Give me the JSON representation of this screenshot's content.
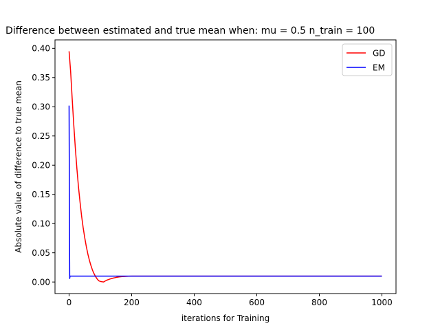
{
  "chart_data": {
    "type": "line",
    "title": "Difference between estimated and true mean when: mu = 0.5 n_train = 100",
    "xlabel": "iterations for Training",
    "ylabel": "Absolute value of difference to true mean",
    "xlim": [
      -45,
      1045
    ],
    "ylim": [
      -0.0198,
      0.4145
    ],
    "xticks": [
      0,
      200,
      400,
      600,
      800,
      1000
    ],
    "xtick_labels": [
      "0",
      "200",
      "400",
      "600",
      "800",
      "1000"
    ],
    "yticks": [
      0.0,
      0.05,
      0.1,
      0.15,
      0.2,
      0.25,
      0.3,
      0.35,
      0.4
    ],
    "ytick_labels": [
      "0.00",
      "0.05",
      "0.10",
      "0.15",
      "0.20",
      "0.25",
      "0.30",
      "0.35",
      "0.40"
    ],
    "grid": false,
    "legend_position": "top-right",
    "series": [
      {
        "name": "GD",
        "color": "#ff0000",
        "x": [
          0,
          5,
          10,
          15,
          20,
          25,
          30,
          35,
          40,
          45,
          50,
          55,
          60,
          65,
          70,
          75,
          80,
          85,
          90,
          95,
          100,
          105,
          110,
          115,
          120,
          130,
          140,
          150,
          160,
          170,
          180,
          190,
          200,
          210,
          220,
          250,
          300,
          400,
          500,
          600,
          700,
          800,
          900,
          1000
        ],
        "values": [
          0.395,
          0.36,
          0.313,
          0.269,
          0.229,
          0.194,
          0.163,
          0.137,
          0.113,
          0.093,
          0.076,
          0.061,
          0.048,
          0.037,
          0.028,
          0.02,
          0.014,
          0.009,
          0.005,
          0.002,
          0.001,
          0.0005,
          0.0,
          0.0015,
          0.003,
          0.005,
          0.0065,
          0.0078,
          0.0087,
          0.0093,
          0.0097,
          0.0099,
          0.01,
          0.01,
          0.01,
          0.01,
          0.01,
          0.01,
          0.01,
          0.01,
          0.01,
          0.01,
          0.01,
          0.01
        ]
      },
      {
        "name": "EM",
        "color": "#0000ff",
        "x": [
          0,
          1,
          2,
          3,
          5,
          10,
          50,
          100,
          200,
          400,
          600,
          800,
          1000
        ],
        "values": [
          0.302,
          0.15,
          0.006,
          0.01,
          0.01,
          0.01,
          0.01,
          0.01,
          0.01,
          0.01,
          0.01,
          0.01,
          0.01
        ]
      }
    ]
  }
}
